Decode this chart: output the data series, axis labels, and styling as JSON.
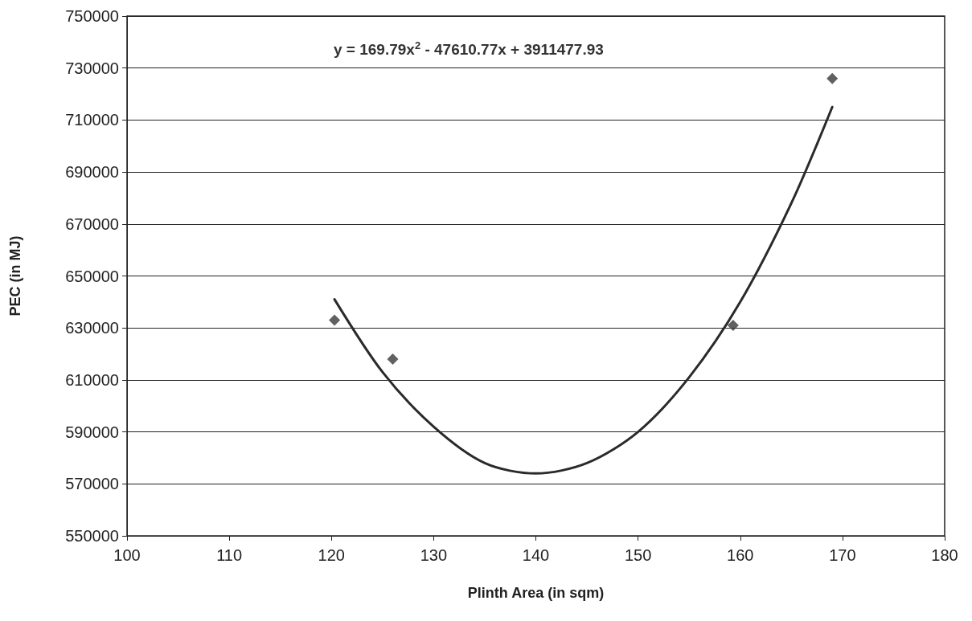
{
  "chart_data": {
    "type": "scatter",
    "xlabel": "Plinth Area (in sqm)",
    "ylabel": "PEC (in MJ)",
    "annotations": [
      "y = 169.79x$^{2}$ - 47610.77x + 3911477.93"
    ],
    "series": [
      {
        "color": "#3a3a3a",
        "marker": "diamond",
        "x": [
          120.3,
          126,
          159.3,
          169
        ],
        "values": [
          633000,
          618000,
          631000,
          726000
        ]
      },
      {
        "type": "line",
        "color": "#2a2a2a",
        "marker": "none",
        "line_style": "solid",
        "x": [
          120.3,
          125,
          130,
          135,
          140,
          145,
          150,
          155,
          160,
          165,
          169
        ],
        "values": [
          641000,
          613000,
          592000,
          578000,
          574000,
          578000,
          590000,
          611000,
          640000,
          678000,
          715000
        ]
      }
    ],
    "xlim": [
      100,
      180
    ],
    "xticks": [
      100,
      110,
      120,
      130,
      140,
      150,
      160,
      170,
      180
    ],
    "ylim": [
      550000,
      750000
    ],
    "yticks": [
      550000,
      570000,
      590000,
      610000,
      630000,
      650000,
      670000,
      690000,
      710000,
      730000,
      750000
    ],
    "grid": "y"
  }
}
